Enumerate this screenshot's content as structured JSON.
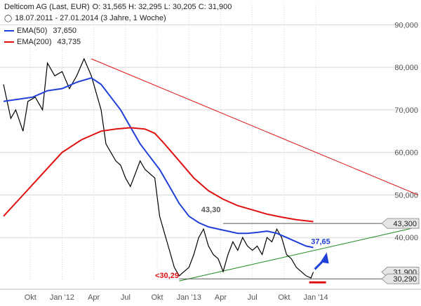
{
  "legend": {
    "title": "Delticom AG (Last, EUR)",
    "ohlc": "O: 31,565  H: 32,295  L: 30,205  C: 31,900",
    "period": "18.07.2011 - 27.01.2014 (3 Jahre, 1 Woche)",
    "ema50_label": "EMA(50)",
    "ema50_value": "37,650",
    "ema200_label": "EMA(200)",
    "ema200_value": "43,735"
  },
  "colors": {
    "price": "#000000",
    "ema50": "#1f3fd8",
    "ema200": "#e01010",
    "trend_down": "#e01010",
    "trend_up": "#1c8a1c",
    "arrow": "#1f3fd8",
    "resistance": "#555555",
    "grid": "#d8d8d8",
    "axis_text": "#555555",
    "label_box": "#e6e6e6"
  },
  "chart_data": {
    "type": "line",
    "title": "Delticom AG (Last, EUR)",
    "ylim": [
      30000,
      95000
    ],
    "y_ticks": [
      {
        "value": 40000,
        "label": "40,000"
      },
      {
        "value": 50000,
        "label": "50,000"
      },
      {
        "value": 60000,
        "label": "60,000"
      },
      {
        "value": 70000,
        "label": "70,000"
      },
      {
        "value": 80000,
        "label": "80,000"
      },
      {
        "value": 90000,
        "label": "90,000"
      }
    ],
    "xlim": [
      0,
      132
    ],
    "x_ticks": [
      {
        "x": 11,
        "label": "Okt"
      },
      {
        "x": 24,
        "label": "Jan '12"
      },
      {
        "x": 37,
        "label": "Apr"
      },
      {
        "x": 50,
        "label": "Jul"
      },
      {
        "x": 63,
        "label": "Okt"
      },
      {
        "x": 76,
        "label": "Jan '13"
      },
      {
        "x": 89,
        "label": "Apr"
      },
      {
        "x": 102,
        "label": "Jul"
      },
      {
        "x": 115,
        "label": "Okt"
      },
      {
        "x": 128,
        "label": "Jan '14"
      }
    ],
    "series": [
      {
        "name": "Delticom AG",
        "values": [
          [
            0,
            76000
          ],
          [
            3,
            68000
          ],
          [
            5,
            70000
          ],
          [
            8,
            65000
          ],
          [
            10,
            72000
          ],
          [
            13,
            73000
          ],
          [
            16,
            70000
          ],
          [
            18,
            81000
          ],
          [
            21,
            78000
          ],
          [
            24,
            79000
          ],
          [
            27,
            75000
          ],
          [
            30,
            78000
          ],
          [
            33,
            82000
          ],
          [
            36,
            78000
          ],
          [
            38,
            74000
          ],
          [
            40,
            70000
          ],
          [
            42,
            62000
          ],
          [
            44,
            60000
          ],
          [
            46,
            58000
          ],
          [
            48,
            57000
          ],
          [
            50,
            54000
          ],
          [
            52,
            52000
          ],
          [
            54,
            55000
          ],
          [
            56,
            58000
          ],
          [
            58,
            56000
          ],
          [
            60,
            55000
          ],
          [
            62,
            54000
          ],
          [
            64,
            45000
          ],
          [
            66,
            41000
          ],
          [
            68,
            37000
          ],
          [
            70,
            33000
          ],
          [
            72,
            31000
          ],
          [
            74,
            32000
          ],
          [
            76,
            33000
          ],
          [
            78,
            36000
          ],
          [
            80,
            40000
          ],
          [
            82,
            42000
          ],
          [
            84,
            38000
          ],
          [
            86,
            36000
          ],
          [
            88,
            35000
          ],
          [
            90,
            32000
          ],
          [
            92,
            36000
          ],
          [
            94,
            39000
          ],
          [
            96,
            37000
          ],
          [
            98,
            40000
          ],
          [
            100,
            38000
          ],
          [
            102,
            37000
          ],
          [
            104,
            38000
          ],
          [
            106,
            36000
          ],
          [
            108,
            40000
          ],
          [
            110,
            39000
          ],
          [
            112,
            42000
          ],
          [
            114,
            40000
          ],
          [
            116,
            36000
          ],
          [
            118,
            35000
          ],
          [
            120,
            33000
          ],
          [
            122,
            32000
          ],
          [
            124,
            31000
          ],
          [
            126,
            30500
          ],
          [
            127,
            31900
          ]
        ]
      },
      {
        "name": "EMA(50)",
        "values": [
          [
            0,
            72000
          ],
          [
            6,
            72500
          ],
          [
            12,
            73000
          ],
          [
            18,
            74500
          ],
          [
            24,
            75000
          ],
          [
            30,
            76500
          ],
          [
            36,
            77500
          ],
          [
            40,
            76000
          ],
          [
            44,
            73000
          ],
          [
            48,
            70000
          ],
          [
            52,
            66000
          ],
          [
            56,
            62000
          ],
          [
            60,
            59000
          ],
          [
            64,
            56000
          ],
          [
            68,
            52000
          ],
          [
            72,
            48000
          ],
          [
            76,
            45000
          ],
          [
            80,
            43500
          ],
          [
            84,
            42500
          ],
          [
            88,
            42000
          ],
          [
            92,
            41500
          ],
          [
            96,
            41000
          ],
          [
            100,
            41000
          ],
          [
            104,
            41200
          ],
          [
            108,
            41500
          ],
          [
            112,
            41000
          ],
          [
            116,
            40000
          ],
          [
            120,
            39000
          ],
          [
            124,
            38000
          ],
          [
            127,
            37650
          ]
        ]
      },
      {
        "name": "EMA(200)",
        "values": [
          [
            0,
            45000
          ],
          [
            8,
            50000
          ],
          [
            16,
            55000
          ],
          [
            24,
            60000
          ],
          [
            32,
            63000
          ],
          [
            40,
            65000
          ],
          [
            46,
            65500
          ],
          [
            52,
            65800
          ],
          [
            58,
            65500
          ],
          [
            62,
            64500
          ],
          [
            66,
            62000
          ],
          [
            72,
            58000
          ],
          [
            78,
            54000
          ],
          [
            84,
            51000
          ],
          [
            90,
            49000
          ],
          [
            96,
            47500
          ],
          [
            102,
            46500
          ],
          [
            108,
            45500
          ],
          [
            114,
            44800
          ],
          [
            120,
            44200
          ],
          [
            127,
            43735
          ]
        ]
      }
    ],
    "annotations": [
      {
        "text": "43,30",
        "x": 85,
        "y": 46000,
        "color": "#555555"
      },
      {
        "text": "<30,29",
        "x": 67,
        "y": 30500,
        "color": "#e01010"
      },
      {
        "text": "37,65",
        "x": 130,
        "y": 38500,
        "color": "#1f3fd8"
      }
    ],
    "trendlines": [
      {
        "name": "downtrend",
        "from": [
          36,
          82000
        ],
        "to": [
          180,
          50000
        ],
        "color": "#e01010"
      },
      {
        "name": "uptrend",
        "from": [
          72,
          29800
        ],
        "to": [
          180,
          42500
        ],
        "color": "#1c8a1c"
      },
      {
        "name": "resistance",
        "from": [
          90,
          43300
        ],
        "to": [
          180,
          43300
        ],
        "color": "#555555"
      },
      {
        "name": "support",
        "from": [
          72,
          30290
        ],
        "to": [
          180,
          30290
        ],
        "color": "#555555"
      }
    ],
    "price_tags": [
      {
        "text": "43,300",
        "value": 43300
      },
      {
        "text": "31,900",
        "value": 31900
      },
      {
        "text": "30,290",
        "value": 30290
      }
    ],
    "grid": true
  }
}
